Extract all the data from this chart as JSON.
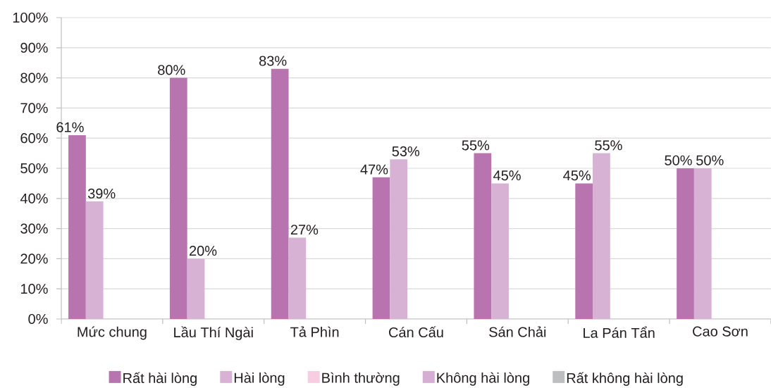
{
  "chart_data": {
    "type": "bar",
    "categories": [
      "Mức chung",
      "Lầu Thí Ngài",
      "Tả Phìn",
      "Cán Cấu",
      "Sán Chải",
      "La Pán Tẩn",
      "Cao Sơn"
    ],
    "series": [
      {
        "name": "Rất hài lòng",
        "color": "#b774ae",
        "values": [
          61,
          80,
          83,
          47,
          55,
          45,
          50
        ],
        "value_labels": [
          "61%",
          "80%",
          "83%",
          "47%",
          "55%",
          "45%",
          "50%"
        ]
      },
      {
        "name": "Hài lòng",
        "color": "#d8b2d4",
        "values": [
          39,
          20,
          27,
          53,
          45,
          55,
          50
        ],
        "value_labels": [
          "39%",
          "20%",
          "27%",
          "53%",
          "45%",
          "55%",
          "50%"
        ]
      },
      {
        "name": "Bình thường",
        "color": "#f8cde1",
        "values": [
          null,
          null,
          null,
          null,
          null,
          null,
          null
        ]
      },
      {
        "name": "Không hài lòng",
        "color": "#d6aed3",
        "values": [
          null,
          null,
          null,
          null,
          null,
          null,
          null
        ]
      },
      {
        "name": "Rất không hài lòng",
        "color": "#bcbec0",
        "values": [
          null,
          null,
          null,
          null,
          null,
          null,
          null
        ]
      }
    ],
    "ylim": [
      0,
      100
    ],
    "yticks": [
      {
        "value": 0,
        "label": "0%"
      },
      {
        "value": 10,
        "label": "10%"
      },
      {
        "value": 20,
        "label": "20%"
      },
      {
        "value": 30,
        "label": "30%"
      },
      {
        "value": 40,
        "label": "40%"
      },
      {
        "value": 50,
        "label": "50%"
      },
      {
        "value": 60,
        "label": "60%"
      },
      {
        "value": 70,
        "label": "70%"
      },
      {
        "value": 80,
        "label": "80%"
      },
      {
        "value": 90,
        "label": "90%"
      },
      {
        "value": 100,
        "label": "100%"
      }
    ],
    "grid": "y",
    "legend": "bottom"
  }
}
